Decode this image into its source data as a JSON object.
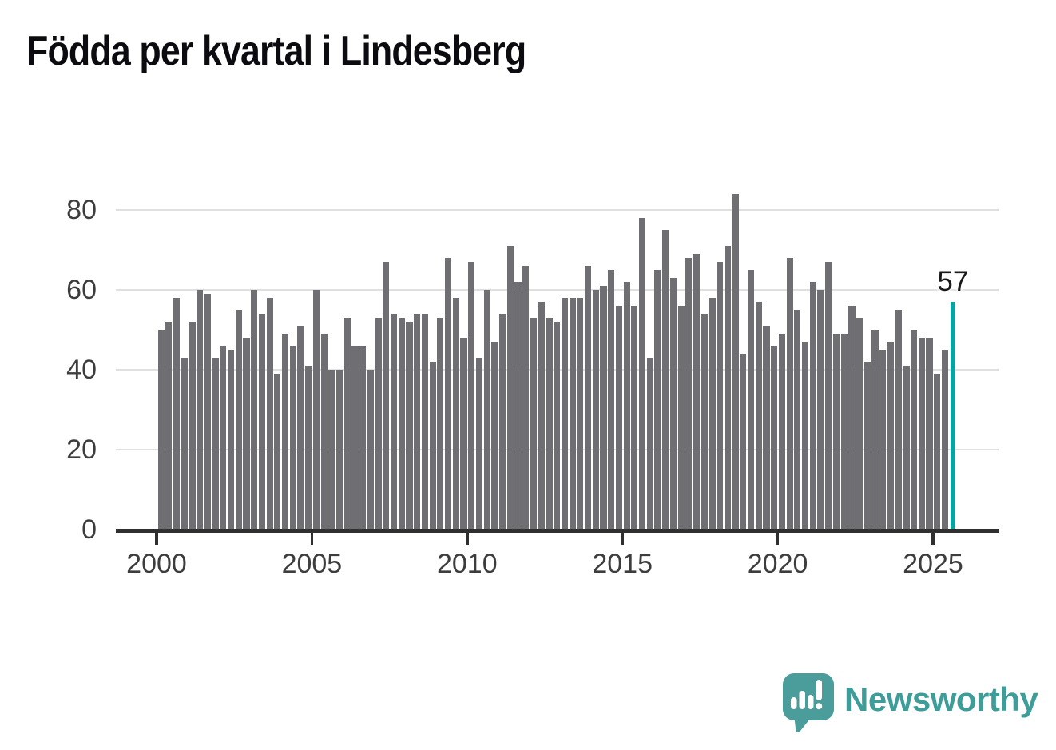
{
  "title": "Födda per kvartal i Lindesberg",
  "chart_data": {
    "type": "bar",
    "title": "Födda per kvartal i Lindesberg",
    "xlabel": "",
    "ylabel": "",
    "ylim": [
      0,
      88
    ],
    "yticks": [
      0,
      20,
      40,
      60,
      80
    ],
    "xticks": [
      "2000",
      "2005",
      "2010",
      "2015",
      "2020",
      "2025"
    ],
    "grid": "horizontal",
    "legend_position": "none",
    "start_year": 2000,
    "periods": "quarters",
    "series": [
      {
        "name": "Födda per kvartal",
        "values_by_year": {
          "2000": [
            50,
            52,
            58,
            43
          ],
          "2001": [
            52,
            60,
            59,
            43
          ],
          "2002": [
            46,
            45,
            55,
            48
          ],
          "2003": [
            60,
            54,
            58,
            39
          ],
          "2004": [
            49,
            46,
            51,
            41
          ],
          "2005": [
            60,
            49,
            40,
            40
          ],
          "2006": [
            53,
            46,
            46,
            40
          ],
          "2007": [
            53,
            67,
            54,
            53
          ],
          "2008": [
            52,
            54,
            54,
            42
          ],
          "2009": [
            53,
            68,
            58,
            48
          ],
          "2010": [
            67,
            43,
            60,
            47
          ],
          "2011": [
            54,
            71,
            62,
            66
          ],
          "2012": [
            53,
            57,
            53,
            52
          ],
          "2013": [
            58,
            58,
            58,
            66
          ],
          "2014": [
            60,
            61,
            65,
            56
          ],
          "2015": [
            62,
            56,
            78,
            43
          ],
          "2016": [
            65,
            75,
            63,
            56
          ],
          "2017": [
            68,
            69,
            54,
            58
          ],
          "2018": [
            67,
            71,
            84,
            44
          ],
          "2019": [
            65,
            57,
            51,
            46
          ],
          "2020": [
            49,
            68,
            55,
            47
          ],
          "2021": [
            62,
            60,
            67,
            49
          ],
          "2022": [
            49,
            56,
            53,
            42
          ],
          "2023": [
            50,
            45,
            47,
            55
          ],
          "2024": [
            41,
            50,
            48,
            48
          ],
          "2025": [
            39,
            45,
            57
          ]
        }
      }
    ],
    "highlight": {
      "period": "2025-Q3",
      "value": 57,
      "label": "57"
    },
    "colors": {
      "bar": "#6e6e73",
      "highlight_bar": "#0ba3a1",
      "gridline": "#e0e0e0",
      "axis": "#2f2f2f",
      "tick_label": "#3d3d3d",
      "annotation": "#191919",
      "title": "#0c0c10"
    }
  },
  "branding": {
    "name": "Newsworthy",
    "wordmark_color": "#3e9d99",
    "icon_color": "#4a9d9a",
    "icon": "newsworthy-speech-bubble-bar-chart-icon"
  }
}
